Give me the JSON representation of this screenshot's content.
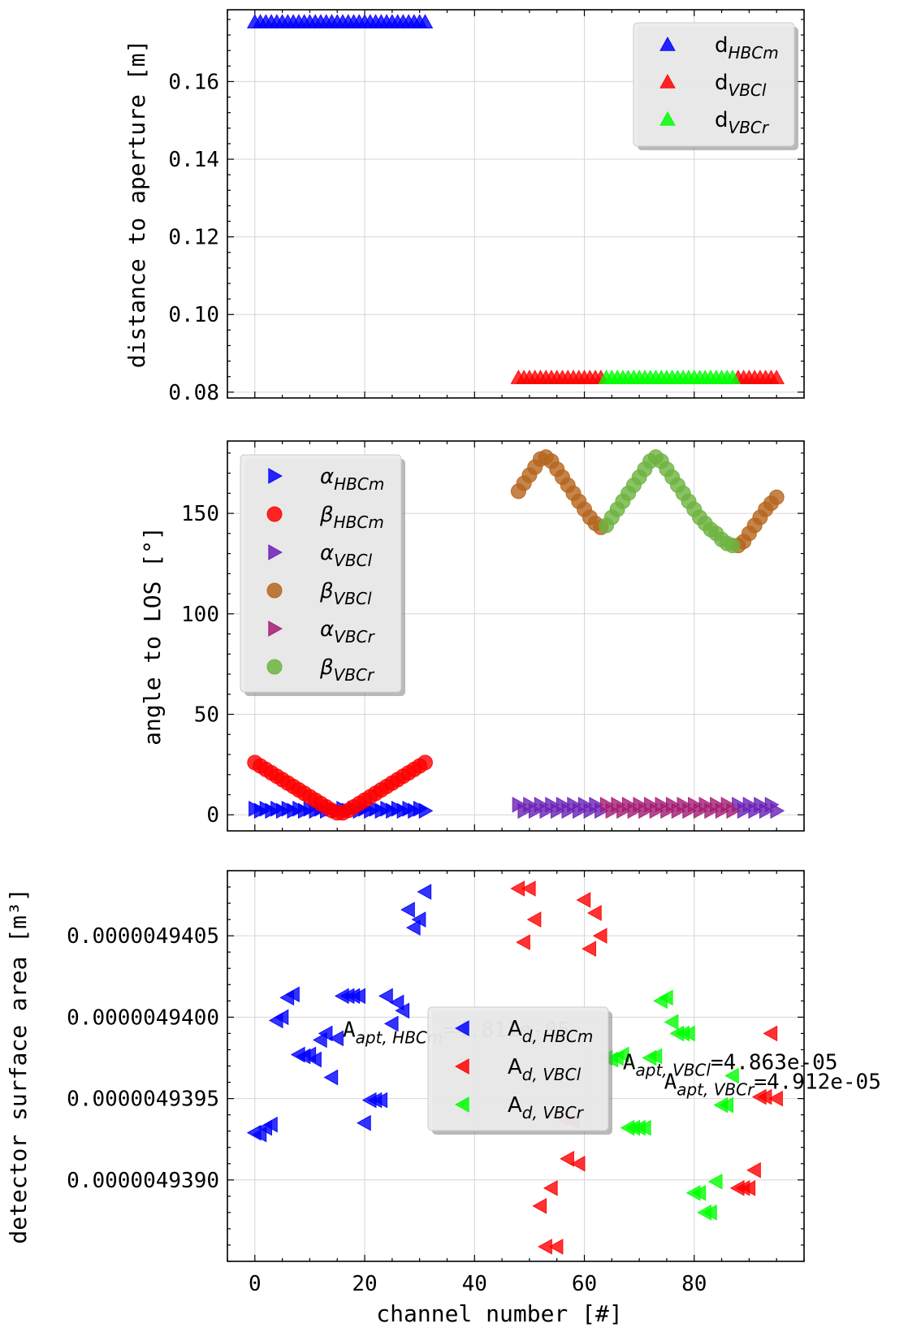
{
  "chart_data": [
    {
      "type": "scatter",
      "ylabel": "distance to aperture [m]",
      "xlim": [
        -5,
        100
      ],
      "ylim": [
        0.0785,
        0.1785
      ],
      "yticks": [
        0.08,
        0.1,
        0.12,
        0.14,
        0.16
      ],
      "ytick_labels": [
        "0.08",
        "0.10",
        "0.12",
        "0.14",
        "0.16"
      ],
      "grid": true,
      "legend_placement": "top-right",
      "series": [
        {
          "name_main": "d",
          "name_sub": "HBCm",
          "marker": "triangle-up",
          "color": "#0000ff",
          "x": [
            0,
            1,
            2,
            3,
            4,
            5,
            6,
            7,
            8,
            9,
            10,
            11,
            12,
            13,
            14,
            15,
            16,
            17,
            18,
            19,
            20,
            21,
            22,
            23,
            24,
            25,
            26,
            27,
            28,
            29,
            30,
            31
          ],
          "y": [
            0.1753,
            0.1753,
            0.1753,
            0.1753,
            0.1753,
            0.1753,
            0.1753,
            0.1753,
            0.1753,
            0.1753,
            0.1753,
            0.1753,
            0.1753,
            0.1753,
            0.1753,
            0.1753,
            0.1753,
            0.1753,
            0.1753,
            0.1753,
            0.1753,
            0.1753,
            0.1753,
            0.1753,
            0.1753,
            0.1753,
            0.1753,
            0.1753,
            0.1753,
            0.1753,
            0.1753,
            0.1753
          ]
        },
        {
          "name_main": "d",
          "name_sub": "VBCl",
          "marker": "triangle-up",
          "color": "#ff0000",
          "x": [
            48,
            49,
            50,
            51,
            52,
            53,
            54,
            55,
            56,
            57,
            58,
            59,
            60,
            61,
            62,
            63,
            88,
            89,
            90,
            91,
            92,
            93,
            94,
            95
          ],
          "y": [
            0.0837,
            0.0837,
            0.0837,
            0.0837,
            0.0837,
            0.0837,
            0.0837,
            0.0837,
            0.0837,
            0.0837,
            0.0837,
            0.0837,
            0.0837,
            0.0837,
            0.0837,
            0.0837,
            0.0837,
            0.0837,
            0.0837,
            0.0837,
            0.0837,
            0.0837,
            0.0837,
            0.0837
          ]
        },
        {
          "name_main": "d",
          "name_sub": "VBCr",
          "marker": "triangle-up",
          "color": "#00ff00",
          "x": [
            64,
            65,
            66,
            67,
            68,
            69,
            70,
            71,
            72,
            73,
            74,
            75,
            76,
            77,
            78,
            79,
            80,
            81,
            82,
            83,
            84,
            85,
            86,
            87
          ],
          "y": [
            0.0837,
            0.0837,
            0.0837,
            0.0837,
            0.0837,
            0.0837,
            0.0837,
            0.0837,
            0.0837,
            0.0837,
            0.0837,
            0.0837,
            0.0837,
            0.0837,
            0.0837,
            0.0837,
            0.0837,
            0.0837,
            0.0837,
            0.0837,
            0.0837,
            0.0837,
            0.0837,
            0.0837
          ]
        }
      ]
    },
    {
      "type": "scatter",
      "ylabel": "angle to LOS [°]",
      "xlim": [
        -5,
        100
      ],
      "ylim": [
        -8,
        186
      ],
      "yticks": [
        0,
        50,
        100,
        150
      ],
      "ytick_labels": [
        "0",
        "50",
        "100",
        "150"
      ],
      "grid": true,
      "legend_placement": "top-left",
      "series": [
        {
          "name_main": "α",
          "name_sub": "HBCm",
          "marker": "triangle-right",
          "color": "#0000ff",
          "x": [
            0,
            1,
            2,
            3,
            4,
            5,
            6,
            7,
            8,
            9,
            10,
            11,
            12,
            13,
            14,
            15,
            16,
            17,
            18,
            19,
            20,
            21,
            22,
            23,
            24,
            25,
            26,
            27,
            28,
            29,
            30,
            31
          ],
          "y": [
            3,
            2,
            3,
            2,
            3,
            2,
            3,
            2,
            3,
            2,
            3,
            2,
            3,
            2,
            3,
            2,
            3,
            2,
            3,
            2,
            3,
            2,
            3,
            2,
            3,
            2,
            3,
            2,
            3,
            2,
            3,
            2
          ]
        },
        {
          "name_main": "β",
          "name_sub": "HBCm",
          "marker": "circle",
          "color": "#ff0000",
          "x": [
            0,
            1,
            2,
            3,
            4,
            5,
            6,
            7,
            8,
            9,
            10,
            11,
            12,
            13,
            14,
            15,
            16,
            17,
            18,
            19,
            20,
            21,
            22,
            23,
            24,
            25,
            26,
            27,
            28,
            29,
            30,
            31
          ],
          "y": [
            26,
            24.3,
            22.6,
            20.9,
            19.2,
            17.5,
            15.8,
            14.1,
            12.4,
            10.7,
            9,
            7.3,
            5.6,
            3.9,
            2.2,
            1,
            1,
            2.2,
            3.9,
            5.6,
            7.3,
            9,
            10.7,
            12.4,
            14.1,
            15.8,
            17.5,
            19.2,
            20.9,
            22.6,
            24.3,
            26
          ]
        },
        {
          "name_main": "α",
          "name_sub": "VBCl",
          "marker": "triangle-right",
          "color": "#6a1fb5",
          "x": [
            48,
            49,
            50,
            51,
            52,
            53,
            54,
            55,
            56,
            57,
            58,
            59,
            60,
            61,
            62,
            63,
            88,
            89,
            90,
            91,
            92,
            93,
            94,
            95
          ],
          "y": [
            5,
            2,
            5,
            2,
            5,
            2,
            5,
            2,
            5,
            2,
            5,
            2,
            5,
            2,
            5,
            2,
            5,
            2,
            5,
            2,
            5,
            2,
            5,
            2
          ]
        },
        {
          "name_main": "β",
          "name_sub": "VBCl",
          "marker": "circle",
          "color": "#b5651d",
          "x": [
            48,
            49,
            50,
            51,
            52,
            53,
            54,
            55,
            56,
            57,
            58,
            59,
            60,
            61,
            62,
            63,
            88,
            89,
            90,
            91,
            92,
            93,
            94,
            95
          ],
          "y": [
            161,
            165,
            169,
            173,
            177,
            178,
            176,
            172,
            168,
            164,
            160,
            156,
            152,
            148,
            145,
            143,
            134,
            136,
            140,
            144,
            148,
            152,
            155,
            158
          ]
        },
        {
          "name_main": "α",
          "name_sub": "VBCr",
          "marker": "triangle-right",
          "color": "#a31b72",
          "x": [
            64,
            65,
            66,
            67,
            68,
            69,
            70,
            71,
            72,
            73,
            74,
            75,
            76,
            77,
            78,
            79,
            80,
            81,
            82,
            83,
            84,
            85,
            86,
            87
          ],
          "y": [
            5,
            2,
            5,
            2,
            5,
            2,
            5,
            2,
            5,
            2,
            5,
            2,
            5,
            2,
            5,
            2,
            5,
            2,
            5,
            2,
            5,
            2,
            5,
            2
          ]
        },
        {
          "name_main": "β",
          "name_sub": "VBCr",
          "marker": "circle",
          "color": "#6db33f",
          "x": [
            64,
            65,
            66,
            67,
            68,
            69,
            70,
            71,
            72,
            73,
            74,
            75,
            76,
            77,
            78,
            79,
            80,
            81,
            82,
            83,
            84,
            85,
            86,
            87
          ],
          "y": [
            144,
            148,
            152,
            156,
            160,
            164,
            168,
            172,
            176,
            178,
            176,
            172,
            168,
            164,
            160,
            156,
            152,
            148,
            145,
            142,
            140,
            137,
            135,
            134
          ]
        }
      ]
    },
    {
      "type": "scatter",
      "ylabel": "detector surface area [m³]",
      "xlabel": "channel number [#]",
      "xlim": [
        -5,
        100
      ],
      "xticks": [
        0,
        20,
        40,
        60,
        80
      ],
      "xtick_labels": [
        "0",
        "20",
        "40",
        "60",
        "80"
      ],
      "ylim": [
        4.9385e-06,
        4.9409e-06
      ],
      "yticks": [
        4.939e-06,
        4.9395e-06,
        4.94e-06,
        4.9405e-06
      ],
      "ytick_labels": [
        "0.0000049390",
        "0.0000049395",
        "0.0000049400",
        "0.0000049405"
      ],
      "grid": true,
      "legend_placement": "center",
      "series": [
        {
          "name_main": "A",
          "name_sub": "d, HBCm",
          "marker": "triangle-left",
          "color": "#0000ff",
          "x": [
            0,
            1,
            2,
            3,
            4,
            5,
            6,
            7,
            8,
            9,
            10,
            11,
            12,
            13,
            14,
            15,
            16,
            17,
            18,
            19,
            20,
            21,
            22,
            23,
            24,
            25,
            26,
            27,
            28,
            29,
            30,
            31
          ],
          "y": [
            4.93929e-06,
            4.93928e-06,
            4.93932e-06,
            4.93934e-06,
            4.93998e-06,
            4.94e-06,
            4.94012e-06,
            4.94014e-06,
            4.93977e-06,
            4.93976e-06,
            4.93977e-06,
            4.93974e-06,
            4.93986e-06,
            4.9399e-06,
            4.93963e-06,
            4.93987e-06,
            4.94013e-06,
            4.94013e-06,
            4.94013e-06,
            4.94013e-06,
            4.93935e-06,
            4.93949e-06,
            4.93949e-06,
            4.93949e-06,
            4.94013e-06,
            4.93996e-06,
            4.94009e-06,
            4.94004e-06,
            4.94066e-06,
            4.94055e-06,
            4.9406e-06,
            4.94077e-06
          ]
        },
        {
          "name_main": "A",
          "name_sub": "d, VBCl",
          "marker": "triangle-left",
          "color": "#ff0000",
          "x": [
            48,
            49,
            50,
            51,
            52,
            53,
            54,
            55,
            56,
            57,
            58,
            59,
            60,
            61,
            62,
            63,
            88,
            89,
            90,
            91,
            92,
            93,
            94,
            95
          ],
          "y": [
            4.94079e-06,
            4.94046e-06,
            4.94079e-06,
            4.9406e-06,
            4.93884e-06,
            4.93859e-06,
            4.93895e-06,
            4.93859e-06,
            4.93938e-06,
            4.93913e-06,
            4.93936e-06,
            4.9391e-06,
            4.94072e-06,
            4.94042e-06,
            4.94064e-06,
            4.9405e-06,
            4.93895e-06,
            4.93895e-06,
            4.93895e-06,
            4.93906e-06,
            4.93951e-06,
            4.93951e-06,
            4.9399e-06,
            4.9395e-06
          ]
        },
        {
          "name_main": "A",
          "name_sub": "d, VBCr",
          "marker": "triangle-left",
          "color": "#00ff00",
          "x": [
            64,
            65,
            66,
            67,
            68,
            69,
            70,
            71,
            72,
            73,
            74,
            75,
            76,
            77,
            78,
            79,
            80,
            81,
            82,
            83,
            84,
            85,
            86,
            87
          ],
          "y": [
            4.93975e-06,
            4.93974e-06,
            4.93975e-06,
            4.93977e-06,
            4.93932e-06,
            4.93932e-06,
            4.93932e-06,
            4.93932e-06,
            4.93975e-06,
            4.93976e-06,
            4.9401e-06,
            4.94012e-06,
            4.93997e-06,
            4.9399e-06,
            4.9399e-06,
            4.9399e-06,
            4.93892e-06,
            4.93892e-06,
            4.9388e-06,
            4.9388e-06,
            4.93899e-06,
            4.93946e-06,
            4.93946e-06,
            4.93964e-06
          ]
        }
      ],
      "annotations": [
        {
          "main": "A",
          "sub": "apt, HBCm",
          "value": "=4.811e-05",
          "x": 16,
          "y": 4.93995e-06
        },
        {
          "main": "A",
          "sub": "apt, VBCl",
          "value": "=4.863e-05",
          "x": 67,
          "y": 4.93975e-06
        },
        {
          "main": "A",
          "sub": "apt, VBCr",
          "value": "=4.912e-05",
          "x": 74.5,
          "y": 4.93963e-06
        }
      ]
    }
  ]
}
